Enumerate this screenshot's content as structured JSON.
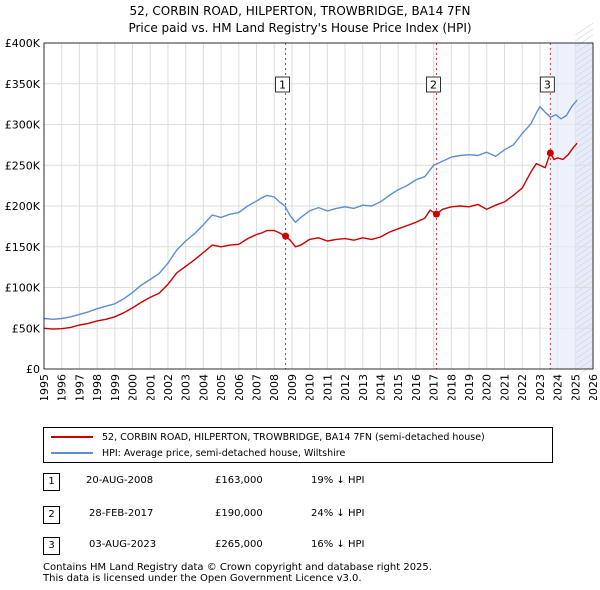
{
  "title_line1": "52, CORBIN ROAD, HILPERTON, TROWBRIDGE, BA14 7FN",
  "title_line2": "Price paid vs. HM Land Registry's House Price Index (HPI)",
  "colors": {
    "property": "#cc0000",
    "hpi": "#5b8fd0",
    "grid": "#dddddd",
    "future_band": "#e6ecf8"
  },
  "chart_data": {
    "type": "line",
    "title": "Price paid vs. HM Land Registry's House Price Index (HPI)",
    "xlabel": "",
    "ylabel": "",
    "xlim": [
      1995,
      2026
    ],
    "ylim": [
      0,
      400000
    ],
    "y_ticks": [
      0,
      50000,
      100000,
      150000,
      200000,
      250000,
      300000,
      350000,
      400000
    ],
    "y_tick_labels": [
      "£0",
      "£50K",
      "£100K",
      "£150K",
      "£200K",
      "£250K",
      "£300K",
      "£350K",
      "£400K"
    ],
    "x_ticks": [
      1995,
      1996,
      1997,
      1998,
      1999,
      2000,
      2001,
      2002,
      2003,
      2004,
      2005,
      2006,
      2007,
      2008,
      2009,
      2010,
      2011,
      2012,
      2013,
      2014,
      2015,
      2016,
      2017,
      2018,
      2019,
      2020,
      2021,
      2022,
      2023,
      2024,
      2025,
      2026
    ],
    "x_tick_labels": [
      "1995",
      "1996",
      "1997",
      "1998",
      "1999",
      "2000",
      "2001",
      "2002",
      "2003",
      "2004",
      "2005",
      "2006",
      "2007",
      "2008",
      "2009",
      "2010",
      "2011",
      "2012",
      "2013",
      "2014",
      "2015",
      "2016",
      "2017",
      "2018",
      "2019",
      "2020",
      "2021",
      "2022",
      "2023",
      "2024",
      "2025",
      "2026"
    ],
    "future_band": [
      2025.0,
      2026.0
    ],
    "series": [
      {
        "name": "52, CORBIN ROAD, HILPERTON, TROWBRIDGE, BA14 7FN (semi-detached house)",
        "color": "#cc0000",
        "x": [
          1995.0,
          1995.5,
          1996.0,
          1996.5,
          1997.0,
          1997.5,
          1998.0,
          1998.5,
          1999.0,
          1999.5,
          2000.0,
          2000.5,
          2001.0,
          2001.5,
          2002.0,
          2002.5,
          2003.0,
          2003.5,
          2004.0,
          2004.5,
          2005.0,
          2005.5,
          2006.0,
          2006.5,
          2007.0,
          2007.3,
          2007.6,
          2008.0,
          2008.3,
          2008.64,
          2008.9,
          2009.2,
          2009.5,
          2010.0,
          2010.5,
          2011.0,
          2011.5,
          2012.0,
          2012.5,
          2013.0,
          2013.5,
          2014.0,
          2014.5,
          2015.0,
          2015.5,
          2016.0,
          2016.5,
          2016.8,
          2017.16,
          2017.5,
          2018.0,
          2018.5,
          2019.0,
          2019.5,
          2020.0,
          2020.5,
          2021.0,
          2021.5,
          2022.0,
          2022.5,
          2022.8,
          2023.0,
          2023.3,
          2023.59,
          2023.8,
          2024.0,
          2024.3,
          2024.6,
          2024.9,
          2025.1
        ],
        "y": [
          50000,
          49000,
          49500,
          51000,
          54000,
          56000,
          59000,
          61000,
          64000,
          69000,
          75000,
          82000,
          88000,
          93000,
          104000,
          118000,
          126000,
          134000,
          143000,
          152000,
          150000,
          152000,
          153000,
          160000,
          165000,
          167000,
          170000,
          170000,
          167000,
          163000,
          158000,
          150000,
          152000,
          159000,
          161000,
          157000,
          159000,
          160000,
          158000,
          161000,
          159000,
          162000,
          168000,
          172000,
          176000,
          180000,
          185000,
          195000,
          190000,
          196000,
          199000,
          200000,
          199000,
          202000,
          196000,
          201000,
          205000,
          213000,
          222000,
          242000,
          252000,
          250000,
          247000,
          265000,
          257000,
          259000,
          257000,
          263000,
          272000,
          277000
        ],
        "sales": [
          {
            "label": "1",
            "x": 2008.64,
            "y": 163000
          },
          {
            "label": "2",
            "x": 2017.16,
            "y": 190000
          },
          {
            "label": "3",
            "x": 2023.59,
            "y": 265000
          }
        ]
      },
      {
        "name": "HPI: Average price, semi-detached house, Wiltshire",
        "color": "#5b8fd0",
        "x": [
          1995.0,
          1995.5,
          1996.0,
          1996.5,
          1997.0,
          1997.5,
          1998.0,
          1998.5,
          1999.0,
          1999.5,
          2000.0,
          2000.5,
          2001.0,
          2001.5,
          2002.0,
          2002.5,
          2003.0,
          2003.5,
          2004.0,
          2004.5,
          2005.0,
          2005.5,
          2006.0,
          2006.5,
          2007.0,
          2007.3,
          2007.6,
          2008.0,
          2008.3,
          2008.6,
          2008.9,
          2009.2,
          2009.5,
          2010.0,
          2010.5,
          2011.0,
          2011.5,
          2012.0,
          2012.5,
          2013.0,
          2013.5,
          2014.0,
          2014.5,
          2015.0,
          2015.5,
          2016.0,
          2016.5,
          2017.0,
          2017.5,
          2018.0,
          2018.5,
          2019.0,
          2019.5,
          2020.0,
          2020.5,
          2021.0,
          2021.5,
          2022.0,
          2022.5,
          2022.8,
          2023.0,
          2023.3,
          2023.6,
          2023.9,
          2024.2,
          2024.5,
          2024.8,
          2025.1
        ],
        "y": [
          62000,
          61000,
          62000,
          64000,
          67000,
          70000,
          74000,
          77000,
          80000,
          86000,
          94000,
          103000,
          110000,
          117000,
          130000,
          146000,
          157000,
          166000,
          177000,
          189000,
          186000,
          190000,
          192000,
          200000,
          206000,
          210000,
          213000,
          211000,
          205000,
          200000,
          188000,
          180000,
          186000,
          194000,
          198000,
          194000,
          197000,
          199000,
          197000,
          201000,
          200000,
          205000,
          213000,
          220000,
          225000,
          232000,
          236000,
          250000,
          255000,
          260000,
          262000,
          263000,
          262000,
          266000,
          261000,
          269000,
          275000,
          289000,
          301000,
          314000,
          322000,
          315000,
          309000,
          312000,
          307000,
          311000,
          322000,
          330000
        ]
      }
    ],
    "annotations": [
      "1",
      "2",
      "3"
    ]
  },
  "legend": {
    "property_label": "52, CORBIN ROAD, HILPERTON, TROWBRIDGE, BA14 7FN (semi-detached house)",
    "hpi_label": "HPI: Average price, semi-detached house, Wiltshire"
  },
  "sales": [
    {
      "num": "1",
      "date": "20-AUG-2008",
      "price": "£163,000",
      "hpi": "19% ↓ HPI"
    },
    {
      "num": "2",
      "date": "28-FEB-2017",
      "price": "£190,000",
      "hpi": "24% ↓ HPI"
    },
    {
      "num": "3",
      "date": "03-AUG-2023",
      "price": "£265,000",
      "hpi": "16% ↓ HPI"
    }
  ],
  "footer": {
    "line1": "Contains HM Land Registry data © Crown copyright and database right 2025.",
    "line2": "This data is licensed under the Open Government Licence v3.0."
  }
}
